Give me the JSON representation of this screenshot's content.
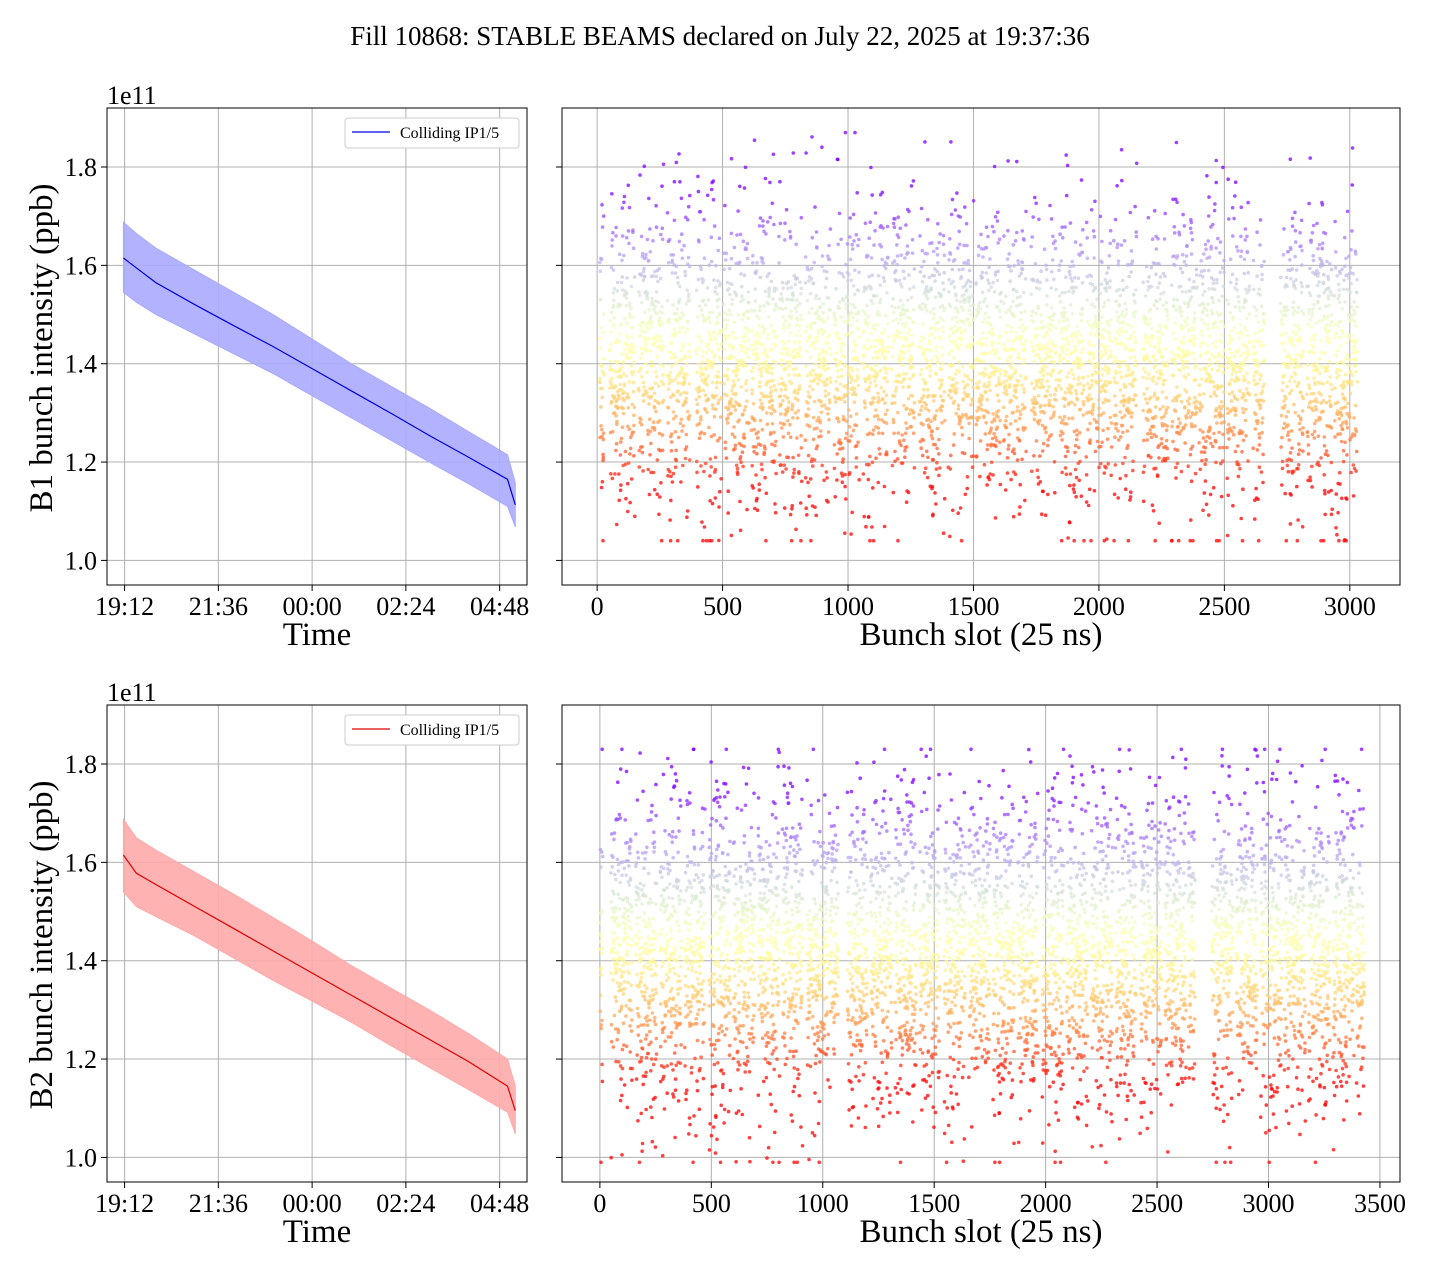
{
  "figure": {
    "title": "Fill 10868: STABLE BEAMS declared on July 22, 2025 at 19:37:36"
  },
  "chart_data": [
    {
      "id": "b1-time",
      "type": "line",
      "title": "",
      "xlabel": "Time",
      "ylabel": "B1 bunch intensity (ppb)",
      "y_offset_label": "1e11",
      "x_ticks": [
        "19:12",
        "21:36",
        "00:00",
        "02:24",
        "04:48"
      ],
      "x_tick_hours": [
        19.2,
        21.6,
        24.0,
        26.4,
        28.8
      ],
      "xlim_hours": [
        18.75,
        29.5
      ],
      "ylim": [
        0.95,
        1.92
      ],
      "y_ticks": [
        1.0,
        1.2,
        1.4,
        1.6,
        1.8
      ],
      "y_tick_labels": [
        "1.0",
        "1.2",
        "1.4",
        "1.6",
        "1.8"
      ],
      "grid": true,
      "legend": {
        "position": "top-right",
        "entries": [
          {
            "label": "Colliding IP1/5",
            "color": "#0000dd"
          }
        ]
      },
      "series": [
        {
          "name": "Colliding IP1/5",
          "color": "#0000dd",
          "band_color": "#aaaaff",
          "x_hours": [
            19.17,
            19.5,
            20.0,
            21.0,
            22.0,
            23.0,
            24.0,
            25.0,
            26.0,
            27.0,
            28.0,
            29.0,
            29.2
          ],
          "mean": [
            1.615,
            1.595,
            1.565,
            1.52,
            1.477,
            1.435,
            1.39,
            1.345,
            1.3,
            1.254,
            1.21,
            1.165,
            1.113
          ],
          "upper": [
            1.688,
            1.665,
            1.635,
            1.59,
            1.545,
            1.5,
            1.45,
            1.4,
            1.355,
            1.31,
            1.262,
            1.215,
            1.158
          ],
          "lower": [
            1.545,
            1.525,
            1.5,
            1.46,
            1.42,
            1.38,
            1.335,
            1.29,
            1.245,
            1.2,
            1.156,
            1.11,
            1.068
          ]
        }
      ]
    },
    {
      "id": "b1-slot",
      "type": "scatter",
      "title": "",
      "xlabel": "Bunch slot (25 ns)",
      "ylabel": "",
      "xlim": [
        -140,
        3200
      ],
      "ylim": [
        0.95,
        1.92
      ],
      "x_ticks": [
        0,
        500,
        1000,
        1500,
        2000,
        2500,
        3000
      ],
      "y_ticks": [
        1.0,
        1.2,
        1.4,
        1.6,
        1.8
      ],
      "grid": true,
      "colormap": "rainbow",
      "slot_range": [
        0,
        3040
      ],
      "bunch_trains": [
        [
          10,
          28
        ],
        [
          50,
          150
        ],
        [
          165,
          265
        ],
        [
          280,
          370
        ],
        [
          395,
          495
        ],
        [
          505,
          605
        ],
        [
          615,
          715
        ],
        [
          725,
          815
        ],
        [
          830,
          930
        ],
        [
          945,
          1045
        ],
        [
          1060,
          1160
        ],
        [
          1175,
          1265
        ],
        [
          1285,
          1385
        ],
        [
          1400,
          1500
        ],
        [
          1510,
          1610
        ],
        [
          1620,
          1710
        ],
        [
          1730,
          1830
        ],
        [
          1840,
          1940
        ],
        [
          1950,
          2050
        ],
        [
          2060,
          2150
        ],
        [
          2175,
          2275
        ],
        [
          2290,
          2390
        ],
        [
          2400,
          2500
        ],
        [
          2510,
          2600
        ],
        [
          2615,
          2660
        ],
        [
          2725,
          2815
        ],
        [
          2830,
          2930
        ],
        [
          2940,
          3030
        ]
      ],
      "value_center": 1.41,
      "value_spread": 0.15,
      "value_min": 1.04,
      "value_max": 1.87
    },
    {
      "id": "b2-time",
      "type": "line",
      "title": "",
      "xlabel": "Time",
      "ylabel": "B2 bunch intensity (ppb)",
      "y_offset_label": "1e11",
      "x_ticks": [
        "19:12",
        "21:36",
        "00:00",
        "02:24",
        "04:48"
      ],
      "x_tick_hours": [
        19.2,
        21.6,
        24.0,
        26.4,
        28.8
      ],
      "xlim_hours": [
        18.75,
        29.5
      ],
      "ylim": [
        0.95,
        1.92
      ],
      "y_ticks": [
        1.0,
        1.2,
        1.4,
        1.6,
        1.8
      ],
      "y_tick_labels": [
        "1.0",
        "1.2",
        "1.4",
        "1.6",
        "1.8"
      ],
      "grid": true,
      "legend": {
        "position": "top-right",
        "entries": [
          {
            "label": "Colliding IP1/5",
            "color": "#dd0000"
          }
        ]
      },
      "series": [
        {
          "name": "Colliding IP1/5",
          "color": "#dd0000",
          "band_color": "#ffaaaa",
          "x_hours": [
            19.17,
            19.5,
            20.0,
            21.0,
            22.0,
            23.0,
            24.0,
            25.0,
            26.0,
            27.0,
            28.0,
            29.0,
            29.2
          ],
          "mean": [
            1.615,
            1.578,
            1.555,
            1.51,
            1.465,
            1.42,
            1.375,
            1.33,
            1.285,
            1.24,
            1.195,
            1.145,
            1.095
          ],
          "upper": [
            1.688,
            1.65,
            1.625,
            1.58,
            1.535,
            1.488,
            1.44,
            1.39,
            1.345,
            1.3,
            1.252,
            1.2,
            1.145
          ],
          "lower": [
            1.54,
            1.51,
            1.49,
            1.45,
            1.405,
            1.36,
            1.318,
            1.275,
            1.228,
            1.183,
            1.138,
            1.092,
            1.048
          ]
        }
      ]
    },
    {
      "id": "b2-slot",
      "type": "scatter",
      "title": "",
      "xlabel": "Bunch slot (25 ns)",
      "ylabel": "",
      "xlim": [
        -170,
        3590
      ],
      "ylim": [
        0.95,
        1.92
      ],
      "x_ticks": [
        0,
        500,
        1000,
        1500,
        2000,
        2500,
        3000,
        3500
      ],
      "y_ticks": [
        1.0,
        1.2,
        1.4,
        1.6,
        1.8
      ],
      "grid": true,
      "colormap": "rainbow",
      "slot_range": [
        0,
        3430
      ],
      "bunch_trains": [
        [
          0,
          12
        ],
        [
          50,
          145
        ],
        [
          160,
          255
        ],
        [
          270,
          365
        ],
        [
          380,
          470
        ],
        [
          490,
          585
        ],
        [
          600,
          695
        ],
        [
          710,
          805
        ],
        [
          820,
          910
        ],
        [
          930,
          1025
        ],
        [
          1030,
          1070
        ],
        [
          1110,
          1200
        ],
        [
          1215,
          1310
        ],
        [
          1325,
          1420
        ],
        [
          1435,
          1525
        ],
        [
          1545,
          1640
        ],
        [
          1655,
          1750
        ],
        [
          1765,
          1860
        ],
        [
          1875,
          1965
        ],
        [
          1985,
          2080
        ],
        [
          2095,
          2190
        ],
        [
          2205,
          2300
        ],
        [
          2315,
          2405
        ],
        [
          2425,
          2520
        ],
        [
          2535,
          2630
        ],
        [
          2640,
          2670
        ],
        [
          2745,
          2840
        ],
        [
          2855,
          2950
        ],
        [
          2965,
          3060
        ],
        [
          3070,
          3165
        ],
        [
          3180,
          3275
        ],
        [
          3290,
          3385
        ],
        [
          3395,
          3430
        ]
      ],
      "value_center": 1.42,
      "value_spread": 0.16,
      "value_min": 0.99,
      "value_max": 1.83
    }
  ]
}
